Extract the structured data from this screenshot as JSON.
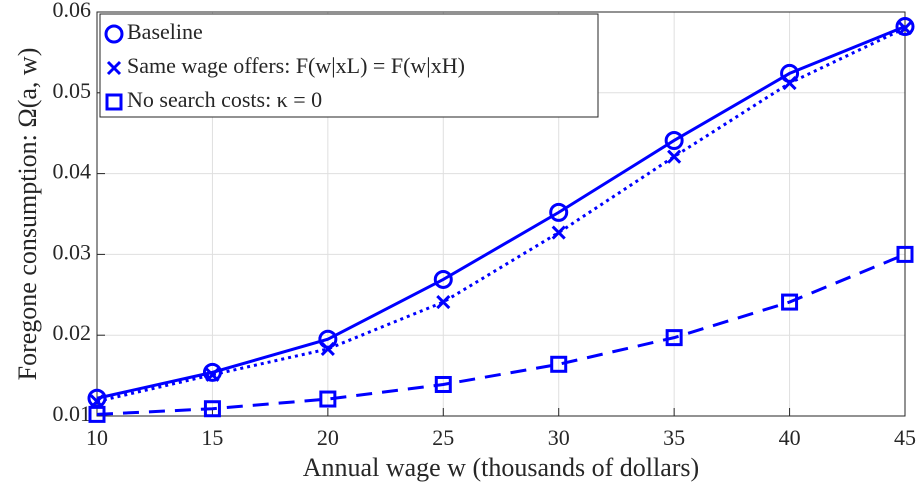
{
  "chart_data": {
    "type": "line",
    "x_label": "Annual wage w (thousands of dollars)",
    "y_label": "Foregone consumption: Ω(a, w)",
    "x": [
      10,
      15,
      20,
      25,
      30,
      35,
      40,
      45
    ],
    "series": [
      {
        "name": "Baseline",
        "color": "#0000ff",
        "marker": "circle",
        "line_style": "solid",
        "values": [
          0.0122,
          0.0154,
          0.0195,
          0.0269,
          0.0352,
          0.0441,
          0.0524,
          0.0582
        ]
      },
      {
        "name": "Same wage offers: F(w|xL) = F(w|xH)",
        "color": "#0000ff",
        "marker": "x",
        "line_style": "dotted",
        "values": [
          0.0118,
          0.0151,
          0.0183,
          0.0241,
          0.0327,
          0.0421,
          0.0512,
          0.058
        ]
      },
      {
        "name": "No search costs: κ = 0",
        "color": "#0000ff",
        "marker": "square",
        "line_style": "dashed",
        "values": [
          0.0102,
          0.0109,
          0.0121,
          0.0139,
          0.0164,
          0.0197,
          0.0241,
          0.03
        ]
      }
    ],
    "xlim": [
      10,
      45
    ],
    "xticks": [
      10,
      15,
      20,
      25,
      30,
      35,
      40,
      45
    ],
    "ylim": [
      0.01,
      0.06
    ],
    "yticks": [
      0.01,
      0.02,
      0.03,
      0.04,
      0.05,
      0.06
    ],
    "grid": true,
    "legend": "upper left"
  }
}
